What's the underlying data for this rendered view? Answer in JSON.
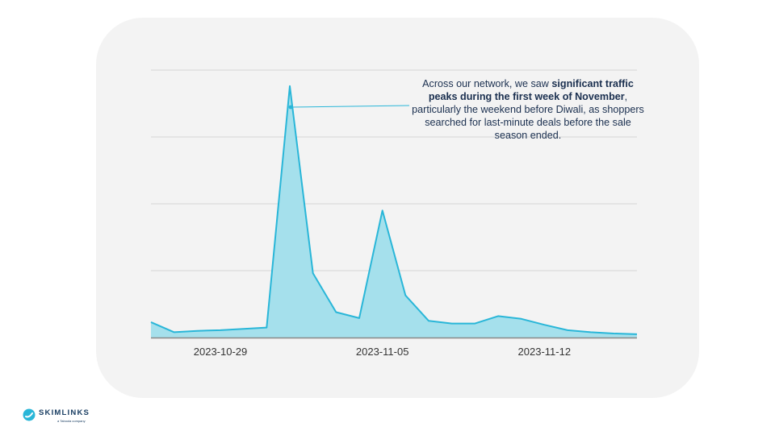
{
  "chart_data": {
    "type": "area",
    "title": "",
    "xlabel": "",
    "ylabel": "",
    "x": [
      "2023-10-26",
      "2023-10-27",
      "2023-10-28",
      "2023-10-29",
      "2023-10-30",
      "2023-10-31",
      "2023-11-01",
      "2023-11-02",
      "2023-11-03",
      "2023-11-04",
      "2023-11-05",
      "2023-11-06",
      "2023-11-07",
      "2023-11-08",
      "2023-11-09",
      "2023-11-10",
      "2023-11-11",
      "2023-11-12",
      "2023-11-13",
      "2023-11-14",
      "2023-11-15",
      "2023-11-16"
    ],
    "values": [
      2.3,
      0.8,
      1.0,
      1.1,
      1.3,
      1.5,
      37.6,
      9.6,
      3.8,
      2.9,
      19.0,
      6.3,
      2.5,
      2.1,
      2.1,
      3.2,
      2.8,
      1.9,
      1.1,
      0.8,
      0.6,
      0.5
    ],
    "ylim": [
      0,
      40
    ],
    "y_tick_count": 5,
    "x_tick_labels": [
      "2023-10-29",
      "2023-11-05",
      "2023-11-12"
    ],
    "x_tick_positions": [
      "2023-10-29",
      "2023-11-05",
      "2023-11-12"
    ],
    "grid": true,
    "colors": {
      "line": "#29b6d8",
      "fill": "#a5e0ec",
      "grid": "#d6d6d6",
      "axis": "#888888"
    }
  },
  "annotation": {
    "text_before": "Across our network, we saw ",
    "text_bold": "significant traffic peaks during the first week of November",
    "text_after": ", particularly the weekend before Diwali, as shoppers searched for last-minute deals before the sale season ended.",
    "points_to": "2023-11-01"
  },
  "brand": {
    "name": "SKIMLINKS",
    "tagline": "a Taboola company",
    "color": "#1b3f63",
    "accent": "#29b6d8",
    "icon": "skimlinks-logo-icon"
  }
}
